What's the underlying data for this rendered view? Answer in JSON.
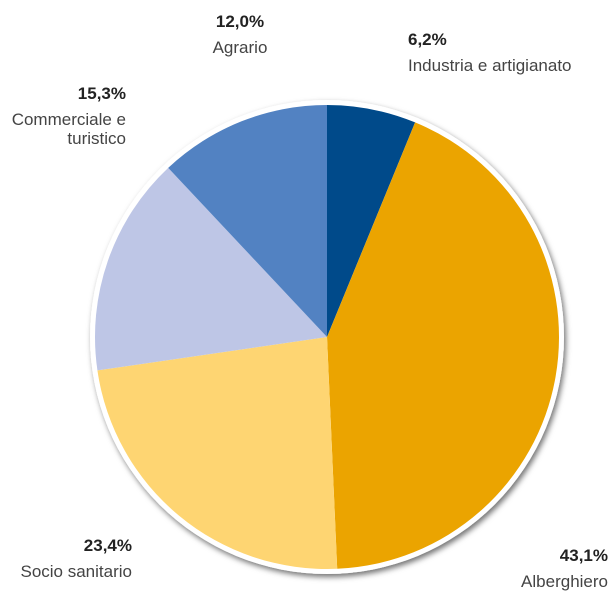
{
  "chart_data": {
    "type": "pie",
    "categories": [
      "Industria e artigianato",
      "Alberghiero",
      "Socio sanitario",
      "Commerciale e turistico",
      "Agrario"
    ],
    "values": [
      6.2,
      43.1,
      23.4,
      15.3,
      12.0
    ],
    "value_labels": [
      "6,2%",
      "43,1%",
      "23,4%",
      "15,3%",
      "12,0%"
    ],
    "colors": [
      "#004a8a",
      "#eba400",
      "#fed572",
      "#bec6e6",
      "#5282c2"
    ]
  }
}
